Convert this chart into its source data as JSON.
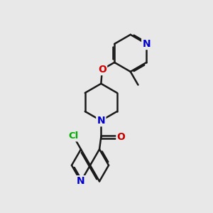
{
  "bg_color": "#e8e8e8",
  "bond_color": "#1a1a1a",
  "bond_width": 1.8,
  "dbo": 0.055,
  "N_color": "#0000cc",
  "O_color": "#cc0000",
  "Cl_color": "#00aa00",
  "figsize": [
    3.0,
    3.0
  ],
  "dpi": 100,
  "xlim": [
    1.0,
    8.5
  ],
  "ylim": [
    0.2,
    9.8
  ]
}
